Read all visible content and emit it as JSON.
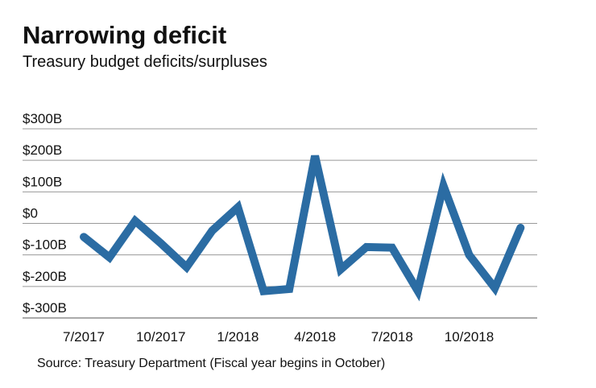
{
  "chart_data": {
    "type": "line",
    "title": "Narrowing deficit",
    "subtitle": "Treasury budget deficits/surpluses",
    "source": "Source: Treasury Department (Fiscal year begins in October)",
    "categories": [
      "7/2017",
      null,
      null,
      "10/2017",
      null,
      null,
      "1/2018",
      null,
      null,
      "4/2018",
      null,
      null,
      "7/2018",
      null,
      null,
      "10/2018",
      null,
      null
    ],
    "values": [
      -43,
      -108,
      8,
      -63,
      -139,
      -23,
      51,
      -215,
      -208,
      214,
      -146,
      -75,
      -77,
      -214,
      119,
      -100,
      -205,
      -14
    ],
    "color": "#2b6ca3",
    "ylim": [
      -300,
      300
    ],
    "yticks": [
      {
        "value": 300,
        "label": "$300B"
      },
      {
        "value": 200,
        "label": "$200B"
      },
      {
        "value": 100,
        "label": "$100B"
      },
      {
        "value": 0,
        "label": "$0"
      },
      {
        "value": -100,
        "label": "$-100B"
      },
      {
        "value": -200,
        "label": "$-200B"
      },
      {
        "value": -300,
        "label": "$-300B"
      }
    ],
    "grid": true
  }
}
